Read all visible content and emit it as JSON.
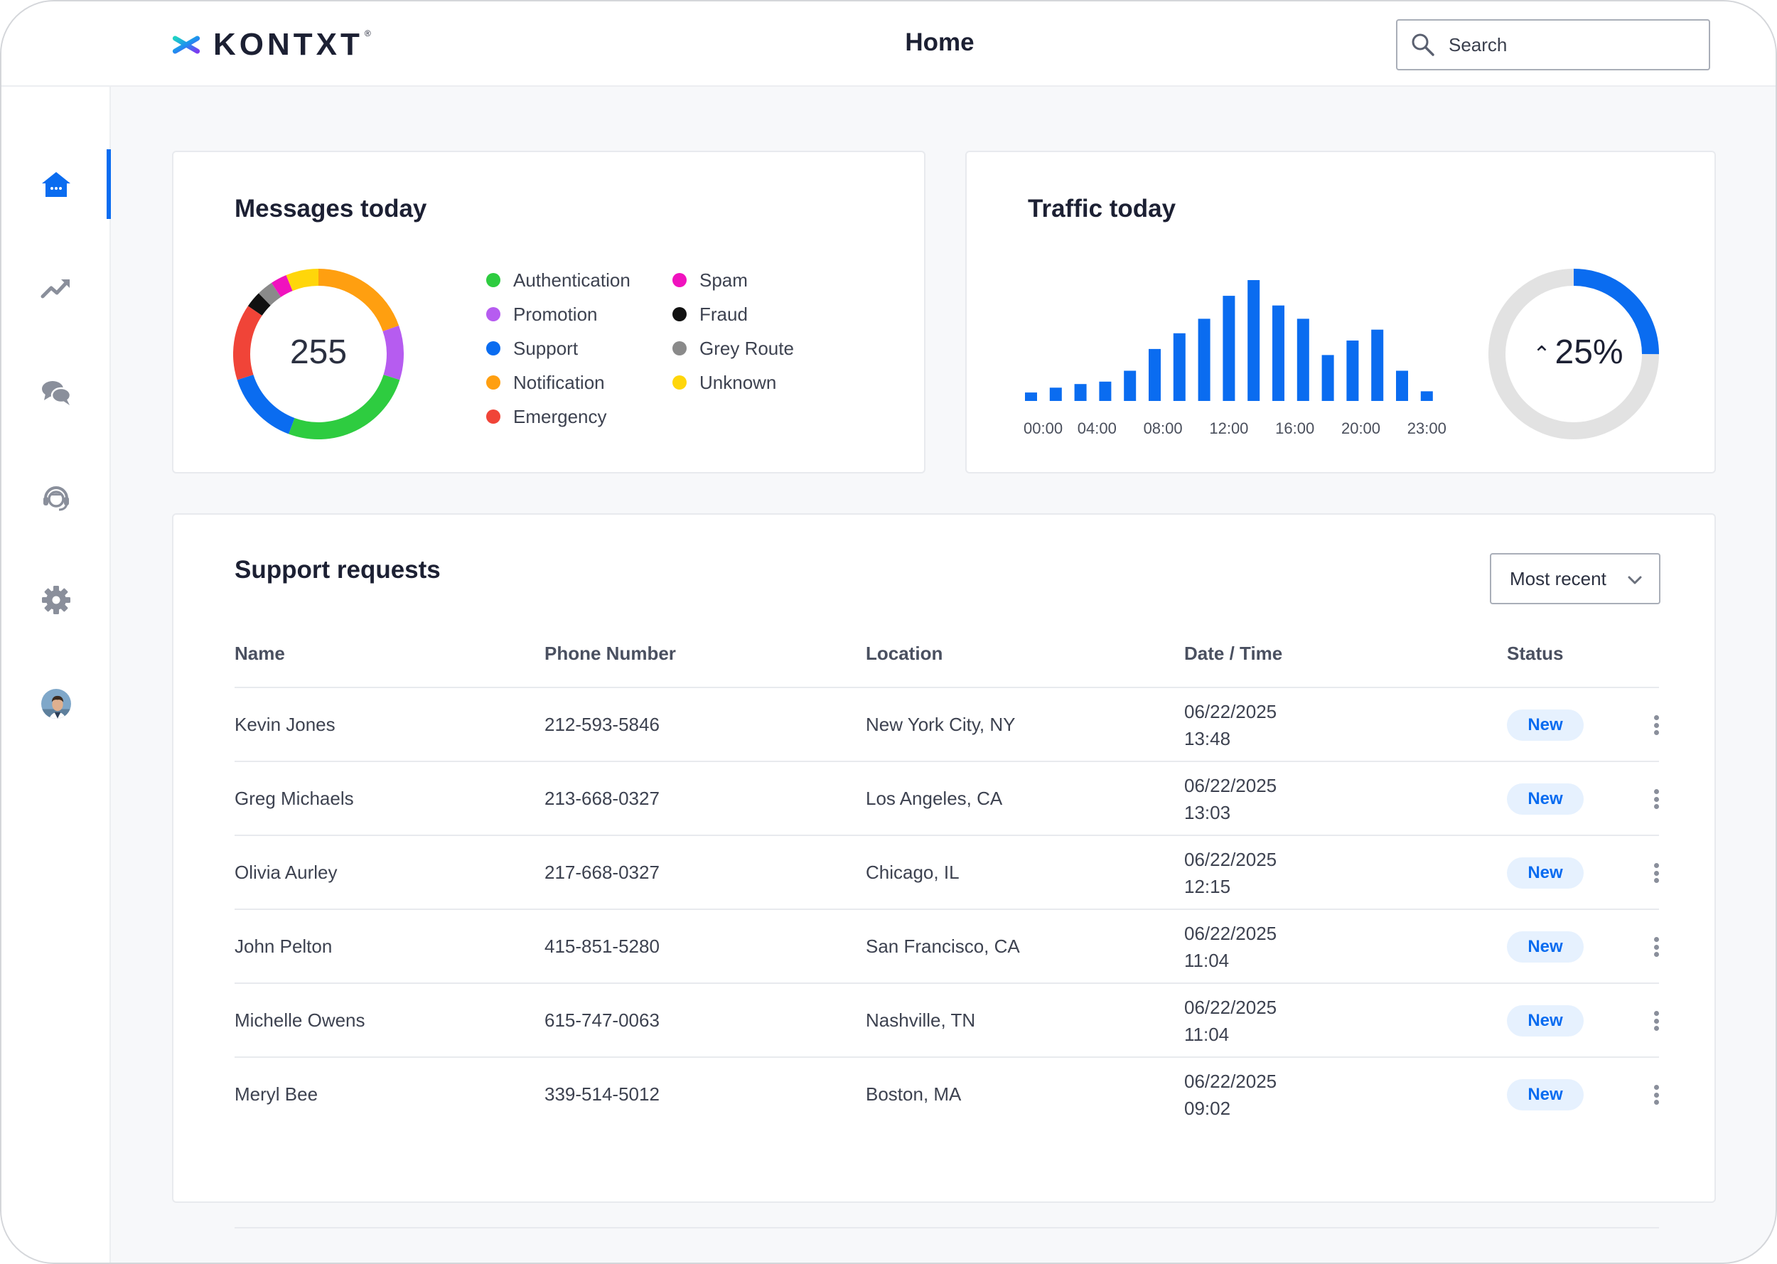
{
  "header": {
    "brand": "KONTXT",
    "brand_mark": "®",
    "title": "Home",
    "search_placeholder": "Search"
  },
  "sidebar": {
    "items": [
      {
        "icon": "home-icon",
        "active": true
      },
      {
        "icon": "trending-up-icon",
        "active": false
      },
      {
        "icon": "chat-bubbles-icon",
        "active": false
      },
      {
        "icon": "headset-agent-icon",
        "active": false
      },
      {
        "icon": "gear-icon",
        "active": false
      },
      {
        "icon": "user-avatar",
        "active": false
      }
    ]
  },
  "messages_card": {
    "title": "Messages today",
    "total": "255",
    "legend": [
      {
        "label": "Authentication",
        "color": "#2ecc40"
      },
      {
        "label": "Spam",
        "color": "#f012be"
      },
      {
        "label": "Promotion",
        "color": "#b65cf0"
      },
      {
        "label": "Fraud",
        "color": "#111111"
      },
      {
        "label": "Support",
        "color": "#0a6cf0"
      },
      {
        "label": "Grey Route",
        "color": "#8a8a8a"
      },
      {
        "label": "Notification",
        "color": "#ff9f10"
      },
      {
        "label": "Unknown",
        "color": "#ffd60a"
      },
      {
        "label": "Emergency",
        "color": "#f04438"
      }
    ]
  },
  "traffic_card": {
    "title": "Traffic today",
    "change_pct": "25%",
    "change_fraction": 0.25,
    "direction": "up"
  },
  "chart_data": [
    {
      "type": "pie",
      "title": "Messages today",
      "center_label": "255",
      "slices": [
        {
          "label": "Notification",
          "value": 0.19,
          "color": "#ff9f10"
        },
        {
          "label": "Promotion",
          "value": 0.1,
          "color": "#b65cf0"
        },
        {
          "label": "Authentication",
          "value": 0.25,
          "color": "#2ecc40"
        },
        {
          "label": "Support",
          "value": 0.14,
          "color": "#0a6cf0"
        },
        {
          "label": "Emergency",
          "value": 0.14,
          "color": "#f04438"
        },
        {
          "label": "Fraud",
          "value": 0.03,
          "color": "#111111"
        },
        {
          "label": "Grey Route",
          "value": 0.03,
          "color": "#8a8a8a"
        },
        {
          "label": "Spam",
          "value": 0.03,
          "color": "#f012be"
        },
        {
          "label": "Unknown",
          "value": 0.06,
          "color": "#ffd60a"
        }
      ]
    },
    {
      "type": "bar",
      "title": "Traffic today",
      "color": "#0a6cf0",
      "x_tick_labels": [
        "00:00",
        "04:00",
        "08:00",
        "12:00",
        "16:00",
        "20:00",
        "23:00"
      ],
      "values": [
        0.7,
        1.1,
        1.4,
        1.6,
        2.5,
        4.3,
        5.6,
        6.8,
        8.7,
        10.0,
        7.9,
        6.8,
        3.8,
        5.0,
        5.9,
        2.5,
        0.8
      ],
      "ylim": [
        0,
        10
      ]
    }
  ],
  "support": {
    "title": "Support requests",
    "sort_value": "Most recent",
    "columns": [
      "Name",
      "Phone Number",
      "Location",
      "Date / Time",
      "Status"
    ],
    "rows": [
      {
        "name": "Kevin Jones",
        "phone": "212-593-5846",
        "location": "New York City, NY",
        "date": "06/22/2025",
        "time": "13:48",
        "status": "New"
      },
      {
        "name": "Greg Michaels",
        "phone": "213-668-0327",
        "location": "Los Angeles, CA",
        "date": "06/22/2025",
        "time": "13:03",
        "status": "New"
      },
      {
        "name": "Olivia Aurley",
        "phone": "217-668-0327",
        "location": "Chicago, IL",
        "date": "06/22/2025",
        "time": "12:15",
        "status": "New"
      },
      {
        "name": "John Pelton",
        "phone": "415-851-5280",
        "location": "San Francisco, CA",
        "date": "06/22/2025",
        "time": "11:04",
        "status": "New"
      },
      {
        "name": "Michelle Owens",
        "phone": "615-747-0063",
        "location": "Nashville, TN",
        "date": "06/22/2025",
        "time": "11:04",
        "status": "New"
      },
      {
        "name": "Meryl Bee",
        "phone": "339-514-5012",
        "location": "Boston, MA",
        "date": "06/22/2025",
        "time": "09:02",
        "status": "New"
      }
    ]
  }
}
